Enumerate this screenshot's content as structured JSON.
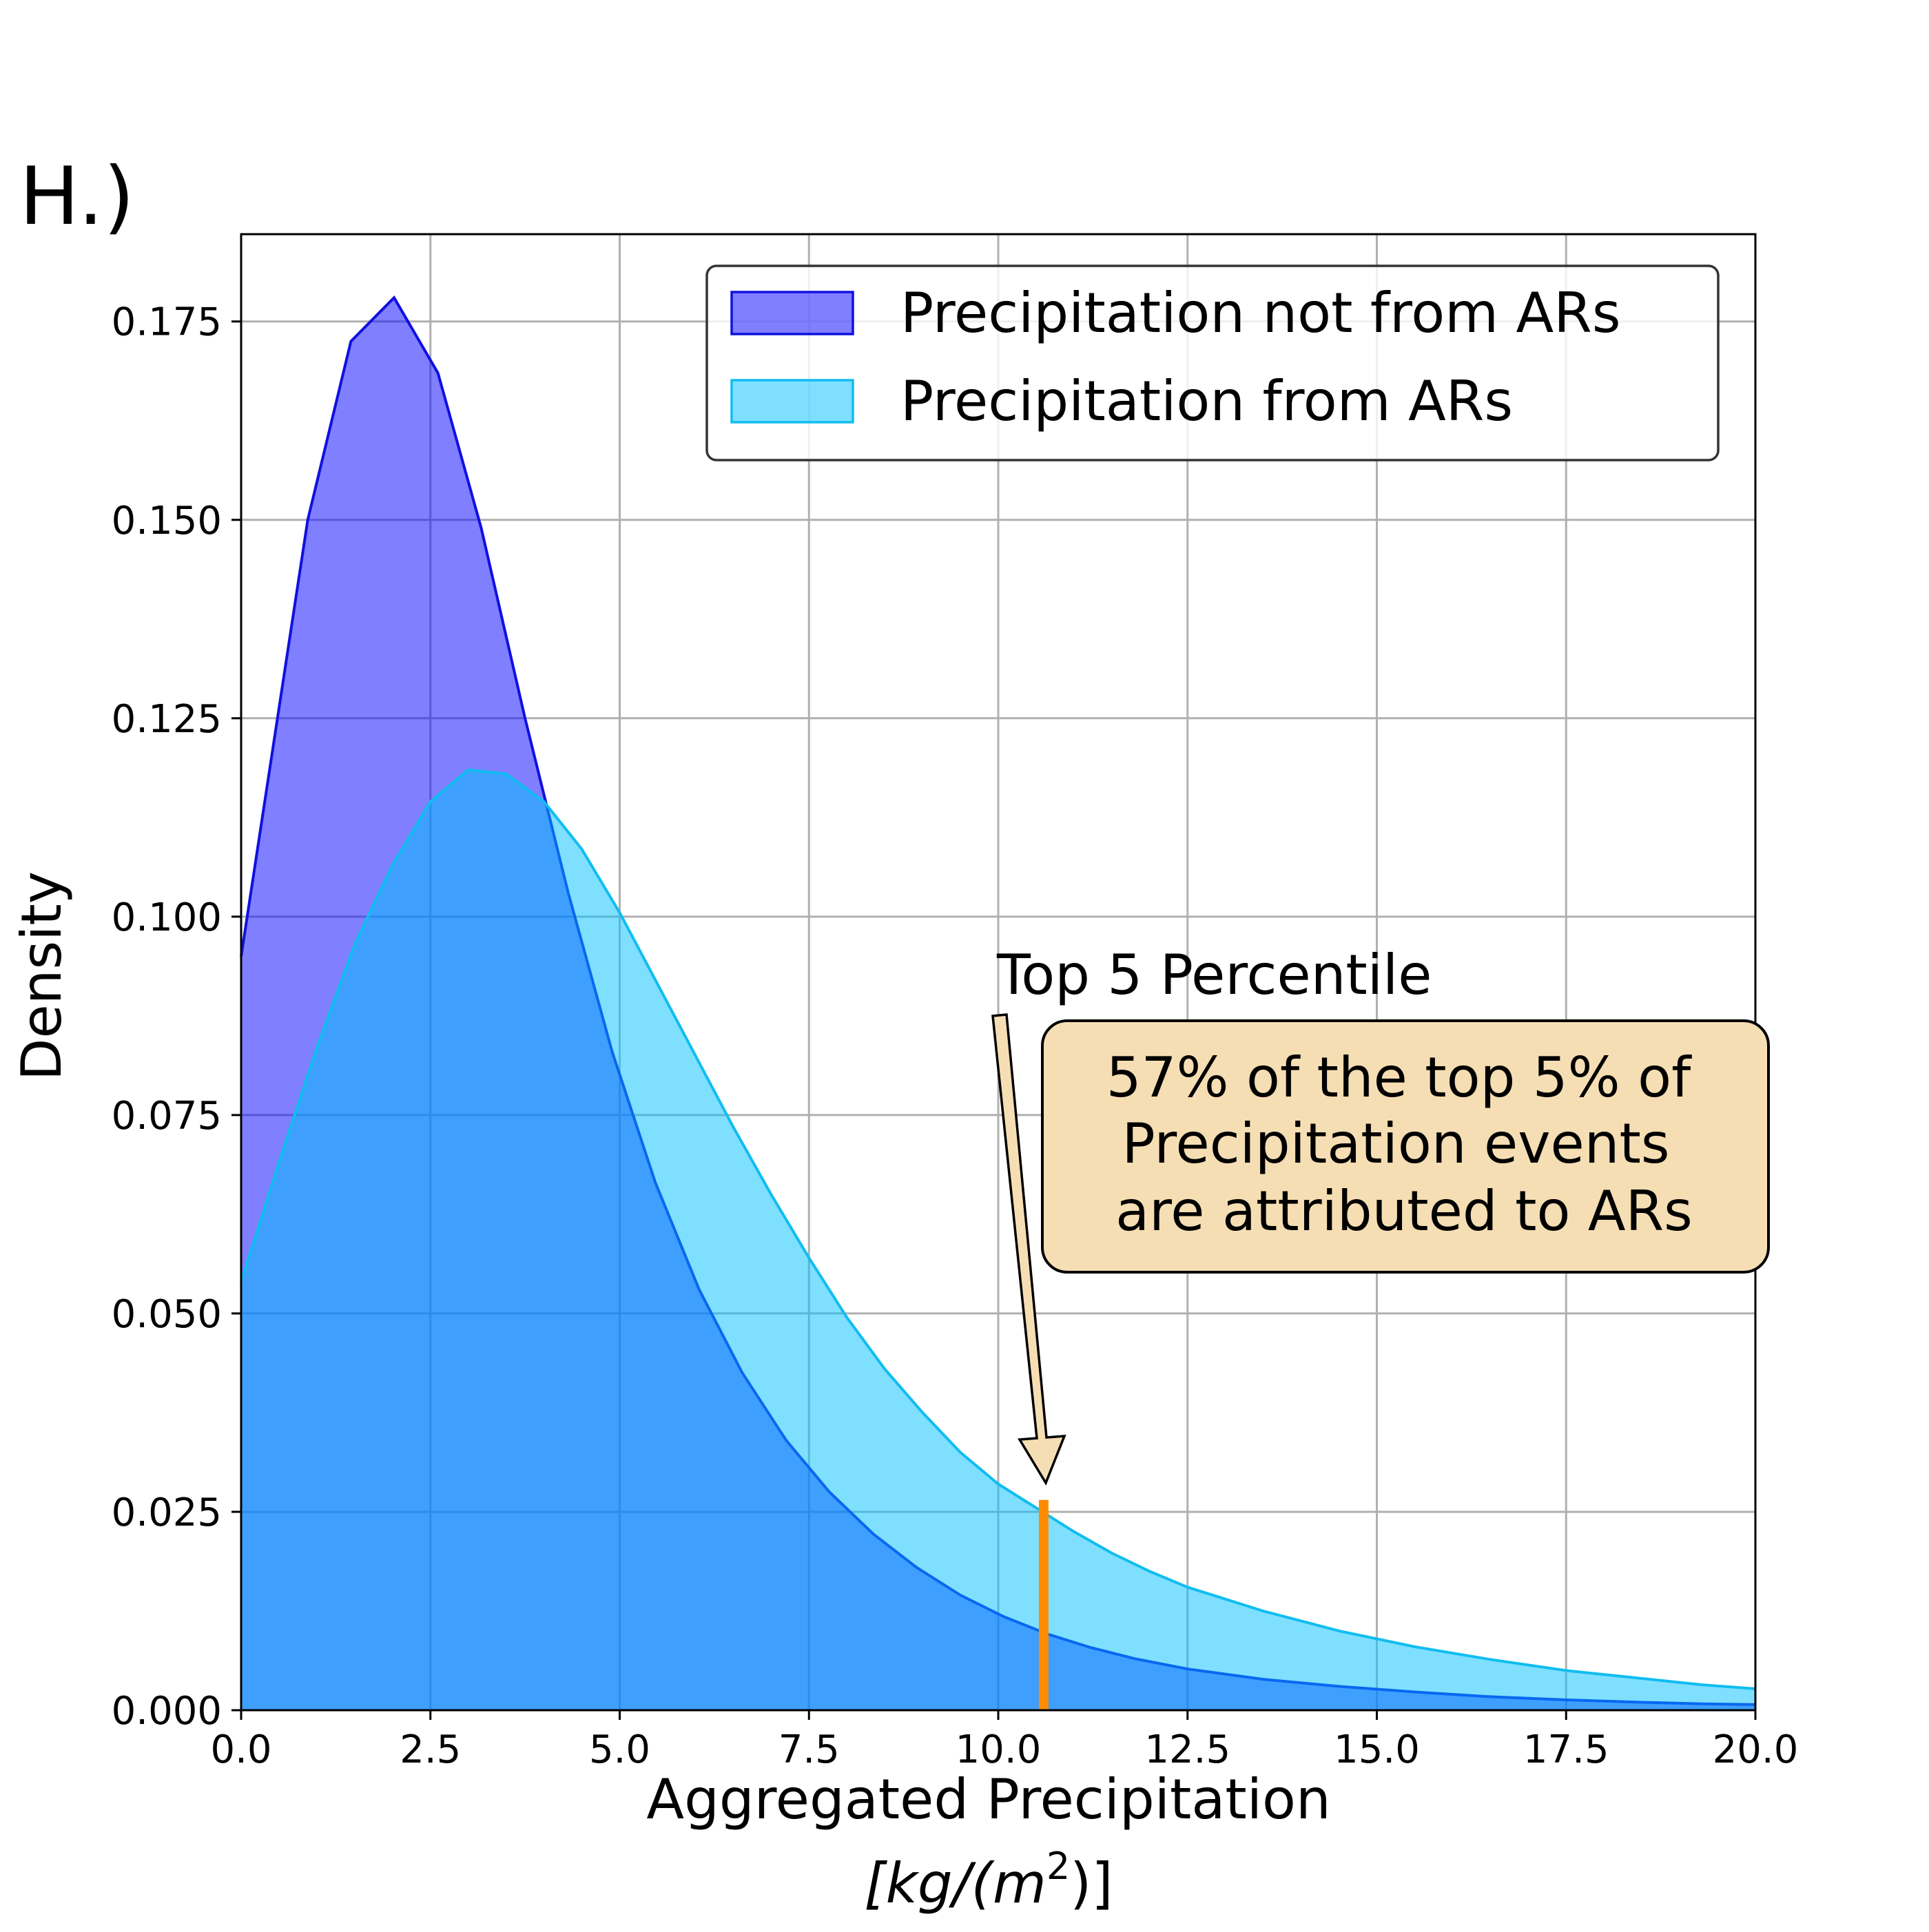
{
  "panel_label": "H.)",
  "chart_data": {
    "type": "area",
    "xlabel": "Aggregated Precipitation",
    "xlabel_units": "[kg/(m",
    "xlabel_units_sup": "2",
    "xlabel_units_end": ")]",
    "ylabel": "Density",
    "xlim": [
      0,
      20
    ],
    "ylim": [
      0,
      0.186
    ],
    "grid": true,
    "legend_position": "upper right",
    "x_ticks": [
      0,
      2.5,
      5,
      7.5,
      10,
      12.5,
      15,
      17.5,
      20
    ],
    "x_tick_labels": [
      "0.0",
      "2.5",
      "5.0",
      "7.5",
      "10.0",
      "12.5",
      "15.0",
      "17.5",
      "20.0"
    ],
    "y_ticks": [
      0,
      0.025,
      0.05,
      0.075,
      0.1,
      0.125,
      0.15,
      0.175
    ],
    "y_tick_labels": [
      "0.000",
      "0.025",
      "0.050",
      "0.075",
      "0.100",
      "0.125",
      "0.150",
      "0.175"
    ],
    "series": [
      {
        "name": "Precipitation not from ARs",
        "fill_color": "#0000ff",
        "fill_opacity": 0.5,
        "line_color": "#1010e0",
        "points": [
          [
            0,
            0.095
          ],
          [
            0.88,
            0.15
          ],
          [
            1.45,
            0.1725
          ],
          [
            2.02,
            0.178
          ],
          [
            2.6,
            0.1685
          ],
          [
            3.17,
            0.149
          ],
          [
            3.75,
            0.125
          ],
          [
            4.32,
            0.103
          ],
          [
            4.9,
            0.083
          ],
          [
            5.47,
            0.0665
          ],
          [
            6.05,
            0.053
          ],
          [
            6.62,
            0.0425
          ],
          [
            7.2,
            0.034
          ],
          [
            7.77,
            0.0275
          ],
          [
            8.35,
            0.0222
          ],
          [
            8.92,
            0.018
          ],
          [
            9.5,
            0.0145
          ],
          [
            10.07,
            0.0118
          ],
          [
            10.65,
            0.0096
          ],
          [
            11.22,
            0.0079
          ],
          [
            11.8,
            0.0065
          ],
          [
            12.5,
            0.0052
          ],
          [
            13.5,
            0.0039
          ],
          [
            14.5,
            0.003
          ],
          [
            15.5,
            0.0023
          ],
          [
            16.5,
            0.0017
          ],
          [
            17.5,
            0.0013
          ],
          [
            18.5,
            0.001
          ],
          [
            19.3,
            0.0008
          ],
          [
            20,
            0.0007
          ]
        ]
      },
      {
        "name": "Precipitation from ARs",
        "fill_color": "#00bfff",
        "fill_opacity": 0.5,
        "line_color": "#10bdf0",
        "points": [
          [
            0,
            0.054
          ],
          [
            0.5,
            0.069
          ],
          [
            1.0,
            0.0835
          ],
          [
            1.5,
            0.0965
          ],
          [
            2.0,
            0.1065
          ],
          [
            2.5,
            0.1145
          ],
          [
            3.0,
            0.1185
          ],
          [
            3.5,
            0.118
          ],
          [
            4.0,
            0.1145
          ],
          [
            4.5,
            0.1085
          ],
          [
            5.0,
            0.1005
          ],
          [
            5.5,
            0.0915
          ],
          [
            6.0,
            0.0825
          ],
          [
            6.5,
            0.0735
          ],
          [
            7.0,
            0.065
          ],
          [
            7.5,
            0.057
          ],
          [
            8.0,
            0.0495
          ],
          [
            8.5,
            0.043
          ],
          [
            9.0,
            0.0375
          ],
          [
            9.5,
            0.0325
          ],
          [
            10.0,
            0.0285
          ],
          [
            10.5,
            0.0255
          ],
          [
            11.0,
            0.0225
          ],
          [
            11.5,
            0.0198
          ],
          [
            12.0,
            0.0175
          ],
          [
            12.5,
            0.0155
          ],
          [
            13.5,
            0.0125
          ],
          [
            14.5,
            0.01
          ],
          [
            15.5,
            0.008
          ],
          [
            16.5,
            0.0064
          ],
          [
            17.5,
            0.005
          ],
          [
            18.5,
            0.004
          ],
          [
            19.3,
            0.0032
          ],
          [
            20,
            0.0027
          ]
        ]
      }
    ],
    "threshold_line": {
      "x": 10.6,
      "y_top": 0.0265,
      "color": "#ff8c00"
    },
    "annotations": {
      "arrow_label": "Top 5 Percentile",
      "box_lines": [
        "57% of the top 5% of",
        "Precipitation events",
        "are attributed to ARs"
      ],
      "box_color": "#f5deb3",
      "arrow_color": "#f5deb3"
    }
  }
}
